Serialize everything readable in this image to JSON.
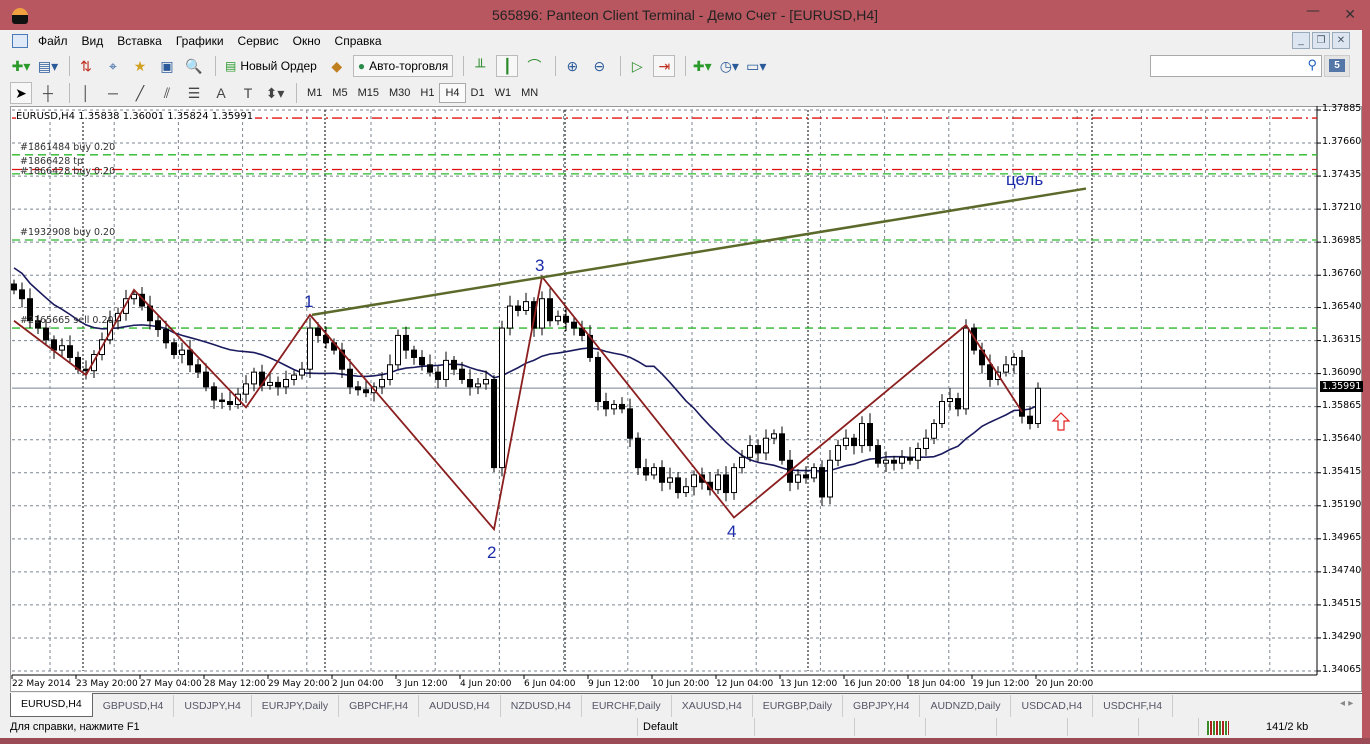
{
  "window": {
    "title": "565896: Panteon Client Terminal - Демо Счет - [EURUSD,H4]"
  },
  "menu": [
    "Файл",
    "Вид",
    "Вставка",
    "Графики",
    "Сервис",
    "Окно",
    "Справка"
  ],
  "toolbar": {
    "new_order": "Новый Ордер",
    "autotrading": "Авто-торговля",
    "search_placeholder": "",
    "messages_count": "5"
  },
  "timeframes": [
    "M1",
    "M5",
    "M15",
    "M30",
    "H1",
    "H4",
    "D1",
    "W1",
    "MN"
  ],
  "active_timeframe": "H4",
  "chart": {
    "info": "EURUSD,H4  1.35838 1.36001 1.35824 1.35991",
    "orders": [
      {
        "label": "#1861484 buy 0.20",
        "price": 1.3758,
        "color": "#2ab82a"
      },
      {
        "label": "#1866428 tp",
        "price": 1.3748,
        "color": "#e01010"
      },
      {
        "label": "#1866428 buy 0.20",
        "price": 1.3745,
        "color": "#2ab82a"
      },
      {
        "label": "#1932908 buy 0.20",
        "price": 1.37,
        "color": "#2ab82a"
      },
      {
        "label": "#2165665 sell 0.20",
        "price": 1.364,
        "color": "#2ab82a"
      }
    ],
    "extra_line": {
      "price": 1.3783,
      "color": "#e01010"
    },
    "wave_labels": [
      "1",
      "2",
      "3",
      "4"
    ],
    "target_label": "цель"
  },
  "chart_data": {
    "type": "candlestick",
    "symbol": "EURUSD",
    "timeframe": "H4",
    "y_ticks": [
      "1.37885",
      "1.37660",
      "1.37435",
      "1.37210",
      "1.36985",
      "1.36760",
      "1.36540",
      "1.36315",
      "1.36090",
      "1.35865",
      "1.35640",
      "1.35415",
      "1.35190",
      "1.34965",
      "1.34740",
      "1.34515",
      "1.34290",
      "1.34065"
    ],
    "ylim": [
      1.34065,
      1.37885
    ],
    "current_price": "1.35991",
    "x_tick_labels": [
      "22 May 2014",
      "23 May 20:00",
      "27 May 04:00",
      "28 May 12:00",
      "29 May 20:00",
      "2 Jun 04:00",
      "3 Jun 12:00",
      "4 Jun 20:00",
      "6 Jun 04:00",
      "9 Jun 12:00",
      "10 Jun 20:00",
      "12 Jun 04:00",
      "13 Jun 12:00",
      "16 Jun 20:00",
      "18 Jun 04:00",
      "19 Jun 12:00",
      "20 Jun 20:00"
    ],
    "closes": [
      1.3666,
      1.366,
      1.3645,
      1.364,
      1.3632,
      1.3625,
      1.3628,
      1.362,
      1.3612,
      1.3611,
      1.3622,
      1.3632,
      1.3645,
      1.365,
      1.366,
      1.3663,
      1.3655,
      1.3645,
      1.3639,
      1.363,
      1.3622,
      1.3625,
      1.3615,
      1.361,
      1.36,
      1.3591,
      1.359,
      1.3588,
      1.3595,
      1.3602,
      1.361,
      1.3601,
      1.3603,
      1.36,
      1.3605,
      1.3608,
      1.3612,
      1.364,
      1.3635,
      1.363,
      1.3625,
      1.3612,
      1.36,
      1.3598,
      1.3596,
      1.36,
      1.3605,
      1.3615,
      1.3635,
      1.3625,
      1.362,
      1.3615,
      1.361,
      1.3605,
      1.3618,
      1.3612,
      1.3605,
      1.36,
      1.3602,
      1.3605,
      1.3545,
      1.364,
      1.3655,
      1.3652,
      1.3658,
      1.364,
      1.366,
      1.3645,
      1.3648,
      1.3644,
      1.364,
      1.3635,
      1.362,
      1.359,
      1.3585,
      1.3588,
      1.3585,
      1.3565,
      1.3545,
      1.354,
      1.3545,
      1.3535,
      1.3538,
      1.3528,
      1.3532,
      1.354,
      1.3535,
      1.353,
      1.354,
      1.3528,
      1.3545,
      1.3552,
      1.356,
      1.3555,
      1.3565,
      1.3568,
      1.355,
      1.3535,
      1.354,
      1.3538,
      1.3545,
      1.3525,
      1.355,
      1.356,
      1.3565,
      1.356,
      1.3575,
      1.356,
      1.3548,
      1.355,
      1.3548,
      1.3552,
      1.355,
      1.3558,
      1.3565,
      1.3575,
      1.359,
      1.3592,
      1.3585,
      1.364,
      1.3625,
      1.3615,
      1.3605,
      1.361,
      1.3615,
      1.362,
      1.358,
      1.3575,
      1.3599
    ],
    "zigzag": [
      {
        "bar": 0,
        "price": 1.3645
      },
      {
        "bar": 9,
        "price": 1.3608
      },
      {
        "bar": 15,
        "price": 1.3666
      },
      {
        "bar": 29,
        "price": 1.3586
      },
      {
        "bar": 37,
        "price": 1.3649
      },
      {
        "bar": 60,
        "price": 1.3503
      },
      {
        "bar": 66,
        "price": 1.3675
      },
      {
        "bar": 90,
        "price": 1.3511
      },
      {
        "bar": 119,
        "price": 1.3642
      },
      {
        "bar": 126,
        "price": 1.3583
      }
    ],
    "trendline": [
      {
        "bar": 37.25,
        "price": 1.3649
      },
      {
        "bar": 134,
        "price": 1.3735
      }
    ],
    "ma_color": "#1a1a5e",
    "zigzag_color": "#8b1e1e",
    "trendline_color": "#5b6a2a",
    "grid": true
  },
  "tabs": [
    "EURUSD,H4",
    "GBPUSD,H4",
    "USDJPY,H4",
    "EURJPY,Daily",
    "GBPCHF,H4",
    "AUDUSD,H4",
    "NZDUSD,H4",
    "EURCHF,Daily",
    "XAUUSD,H4",
    "EURGBP,Daily",
    "GBPJPY,H4",
    "AUDNZD,Daily",
    "USDCAD,H4",
    "USDCHF,H4"
  ],
  "status": {
    "help": "Для справки, нажмите F1",
    "profile": "Default",
    "traffic": "141/2 kb"
  }
}
